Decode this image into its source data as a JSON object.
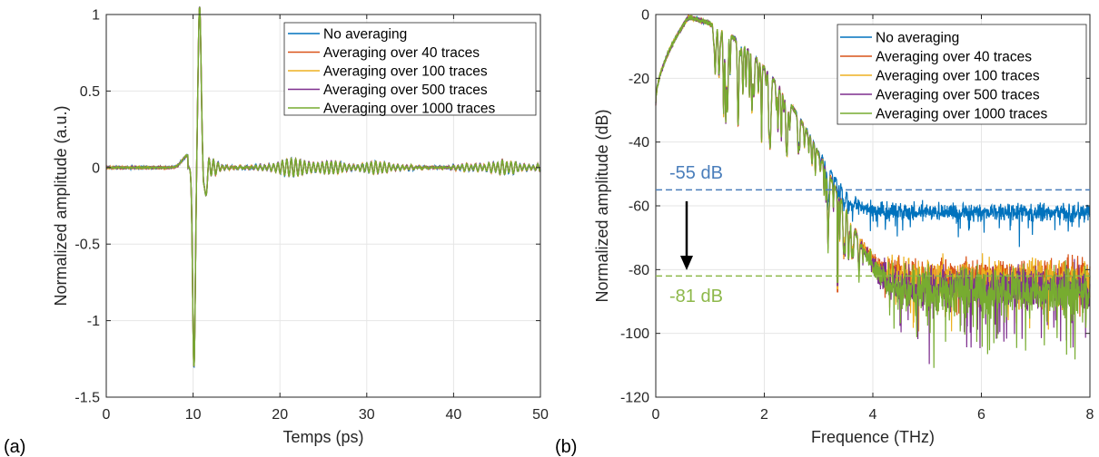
{
  "colors": {
    "no_avg": "#0072BD",
    "avg40": "#D95319",
    "avg100": "#EDB120",
    "avg500": "#7E2F8E",
    "avg1000": "#77AC30",
    "annot_blue": "#4A7EBB",
    "annot_green": "#8DB84A"
  },
  "chart_data": [
    {
      "type": "line",
      "panel_label": "(a)",
      "title": "",
      "xlabel": "Temps (ps)",
      "ylabel": "Normalized amplitude (a.u.)",
      "xlim": [
        0,
        50
      ],
      "ylim": [
        -1.5,
        1
      ],
      "xticks": [
        "0",
        "10",
        "20",
        "30",
        "40",
        "50"
      ],
      "yticks": [
        "-1.5",
        "-1",
        "-0.5",
        "0",
        "0.5",
        "1"
      ],
      "grid": true,
      "legend_position": "top-right",
      "series": [
        {
          "name": "No averaging",
          "color": "#0072BD"
        },
        {
          "name": "Averaging over 40 traces",
          "color": "#D95319"
        },
        {
          "name": "Averaging over 100 traces",
          "color": "#EDB120"
        },
        {
          "name": "Averaging over 500 traces",
          "color": "#7E2F8E"
        },
        {
          "name": "Averaging over 1000 traces",
          "color": "#77AC30"
        }
      ],
      "key_points": {
        "x": [
          0,
          8,
          9.5,
          10.1,
          10.4,
          10.8,
          11.2,
          12,
          50
        ],
        "y": [
          0,
          0.01,
          0.08,
          -1.26,
          0.3,
          1.0,
          0.35,
          0.05,
          0
        ]
      },
      "annotations": []
    },
    {
      "type": "line",
      "panel_label": "(b)",
      "title": "",
      "xlabel": "Frequence (THz)",
      "ylabel": "Normalized amplitude (dB)",
      "xlim": [
        0,
        8
      ],
      "ylim": [
        -120,
        0
      ],
      "xticks": [
        "0",
        "2",
        "4",
        "6",
        "8"
      ],
      "yticks": [
        "-120",
        "-100",
        "-80",
        "-60",
        "-40",
        "-20",
        "0"
      ],
      "grid": true,
      "legend_position": "top-right",
      "series": [
        {
          "name": "No averaging",
          "color": "#0072BD",
          "noise_floor_db": -62
        },
        {
          "name": "Averaging over 40 traces",
          "color": "#D95319",
          "noise_floor_db": -82
        },
        {
          "name": "Averaging over 100 traces",
          "color": "#EDB120",
          "noise_floor_db": -83
        },
        {
          "name": "Averaging over 500 traces",
          "color": "#7E2F8E",
          "noise_floor_db": -86
        },
        {
          "name": "Averaging over 1000 traces",
          "color": "#77AC30",
          "noise_floor_db": -87
        }
      ],
      "key_points": {
        "x": [
          0,
          0.5,
          0.6,
          1.5,
          2.2,
          3.0,
          3.8,
          4.5,
          8
        ],
        "y": [
          -28,
          -2,
          -1,
          -6,
          -20,
          -38,
          -50,
          -60,
          -62
        ]
      },
      "annotations": [
        {
          "text": "-55 dB",
          "y": -55,
          "color": "#4A7EBB"
        },
        {
          "text": "-81 dB",
          "y": -82,
          "color": "#8DB84A"
        }
      ]
    }
  ]
}
